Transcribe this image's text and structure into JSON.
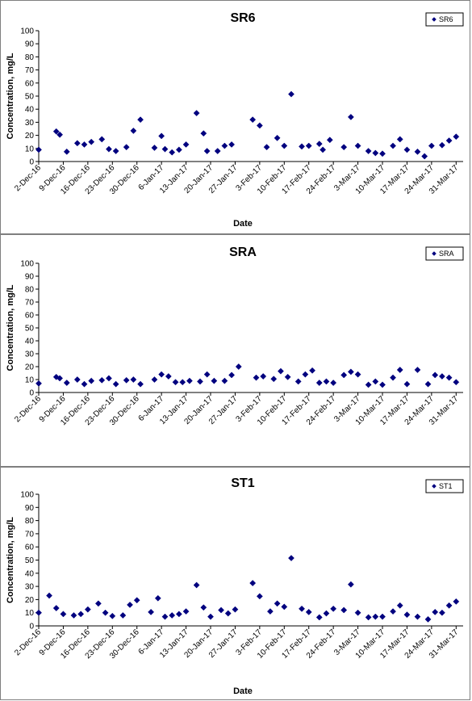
{
  "chart_data": [
    {
      "type": "scatter",
      "title": "SR6",
      "xlabel": "Date",
      "ylabel": "Concentration, mg/L",
      "ylim": [
        0,
        100
      ],
      "yticks": [
        0,
        10,
        20,
        30,
        40,
        50,
        60,
        70,
        80,
        90,
        100
      ],
      "xlim": [
        "2016-12-02",
        "2017-04-02"
      ],
      "xtick_dates": [
        "2016-12-02",
        "2016-12-09",
        "2016-12-16",
        "2016-12-23",
        "2016-12-30",
        "2017-01-06",
        "2017-01-13",
        "2017-01-20",
        "2017-01-27",
        "2017-02-03",
        "2017-02-10",
        "2017-02-17",
        "2017-02-24",
        "2017-03-03",
        "2017-03-10",
        "2017-03-17",
        "2017-03-24",
        "2017-03-31"
      ],
      "xtick_labels": [
        "2-Dec-16",
        "9-Dec-16",
        "16-Dec-16",
        "23-Dec-16",
        "30-Dec-16",
        "6-Jan-17",
        "13-Jan-17",
        "20-Jan-17",
        "27-Jan-17",
        "3-Feb-17",
        "10-Feb-17",
        "17-Feb-17",
        "24-Feb-17",
        "3-Mar-17",
        "10-Mar-17",
        "17-Mar-17",
        "24-Mar-17",
        "31-Mar-17"
      ],
      "legend": "top-right",
      "grid": false,
      "marker_color": "#00007f",
      "series": [
        {
          "name": "SR6",
          "points": [
            [
              "2016-12-02",
              9
            ],
            [
              "2016-12-07",
              23
            ],
            [
              "2016-12-08",
              20.5
            ],
            [
              "2016-12-10",
              7.5
            ],
            [
              "2016-12-13",
              14
            ],
            [
              "2016-12-15",
              13
            ],
            [
              "2016-12-17",
              15
            ],
            [
              "2016-12-20",
              17
            ],
            [
              "2016-12-22",
              9.5
            ],
            [
              "2016-12-24",
              8
            ],
            [
              "2016-12-27",
              11
            ],
            [
              "2016-12-29",
              23.5
            ],
            [
              "2016-12-31",
              32
            ],
            [
              "2017-01-04",
              10.5
            ],
            [
              "2017-01-06",
              19.5
            ],
            [
              "2017-01-07",
              9.5
            ],
            [
              "2017-01-09",
              7
            ],
            [
              "2017-01-11",
              9
            ],
            [
              "2017-01-13",
              13
            ],
            [
              "2017-01-16",
              37
            ],
            [
              "2017-01-18",
              21.5
            ],
            [
              "2017-01-19",
              8
            ],
            [
              "2017-01-22",
              8
            ],
            [
              "2017-01-24",
              12
            ],
            [
              "2017-01-26",
              13
            ],
            [
              "2017-02-01",
              32
            ],
            [
              "2017-02-03",
              27.5
            ],
            [
              "2017-02-05",
              11
            ],
            [
              "2017-02-08",
              18
            ],
            [
              "2017-02-10",
              12
            ],
            [
              "2017-02-12",
              51.5
            ],
            [
              "2017-02-15",
              11.5
            ],
            [
              "2017-02-17",
              12
            ],
            [
              "2017-02-20",
              13.5
            ],
            [
              "2017-02-21",
              9
            ],
            [
              "2017-02-23",
              16.5
            ],
            [
              "2017-02-27",
              11
            ],
            [
              "2017-03-01",
              34
            ],
            [
              "2017-03-03",
              12
            ],
            [
              "2017-03-06",
              8
            ],
            [
              "2017-03-08",
              6.5
            ],
            [
              "2017-03-10",
              6
            ],
            [
              "2017-03-13",
              12
            ],
            [
              "2017-03-15",
              17
            ],
            [
              "2017-03-17",
              9
            ],
            [
              "2017-03-20",
              7.5
            ],
            [
              "2017-03-22",
              4
            ],
            [
              "2017-03-24",
              12
            ],
            [
              "2017-03-27",
              12.5
            ],
            [
              "2017-03-29",
              16
            ],
            [
              "2017-03-31",
              19
            ]
          ]
        }
      ]
    },
    {
      "type": "scatter",
      "title": "SRA",
      "xlabel": "",
      "ylabel": "Concentration, mg/L",
      "ylim": [
        0,
        100
      ],
      "yticks": [
        0,
        10,
        20,
        30,
        40,
        50,
        60,
        70,
        80,
        90,
        100
      ],
      "xlim": [
        "2016-12-02",
        "2017-04-02"
      ],
      "xtick_dates": [
        "2016-12-02",
        "2016-12-09",
        "2016-12-16",
        "2016-12-23",
        "2016-12-30",
        "2017-01-06",
        "2017-01-13",
        "2017-01-20",
        "2017-01-27",
        "2017-02-03",
        "2017-02-10",
        "2017-02-17",
        "2017-02-24",
        "2017-03-03",
        "2017-03-10",
        "2017-03-17",
        "2017-03-24",
        "2017-03-31"
      ],
      "xtick_labels": [
        "2-Dec-16",
        "9-Dec-16",
        "16-Dec-16",
        "23-Dec-16",
        "30-Dec-16",
        "6-Jan-17",
        "13-Jan-17",
        "20-Jan-17",
        "27-Jan-17",
        "3-Feb-17",
        "10-Feb-17",
        "17-Feb-17",
        "24-Feb-17",
        "3-Mar-17",
        "10-Mar-17",
        "17-Mar-17",
        "24-Mar-17",
        "31-Mar-17"
      ],
      "legend": "top-right",
      "grid": false,
      "marker_color": "#00007f",
      "series": [
        {
          "name": "SRA",
          "points": [
            [
              "2016-12-02",
              7
            ],
            [
              "2016-12-07",
              12
            ],
            [
              "2016-12-08",
              11
            ],
            [
              "2016-12-10",
              7.5
            ],
            [
              "2016-12-13",
              10
            ],
            [
              "2016-12-15",
              6.5
            ],
            [
              "2016-12-17",
              9
            ],
            [
              "2016-12-20",
              9.5
            ],
            [
              "2016-12-22",
              11
            ],
            [
              "2016-12-24",
              6.5
            ],
            [
              "2016-12-27",
              9.5
            ],
            [
              "2016-12-29",
              10
            ],
            [
              "2016-12-31",
              6.5
            ],
            [
              "2017-01-04",
              10
            ],
            [
              "2017-01-06",
              14
            ],
            [
              "2017-01-08",
              12.5
            ],
            [
              "2017-01-10",
              8
            ],
            [
              "2017-01-12",
              8
            ],
            [
              "2017-01-14",
              9
            ],
            [
              "2017-01-17",
              8.5
            ],
            [
              "2017-01-19",
              14
            ],
            [
              "2017-01-21",
              9
            ],
            [
              "2017-01-24",
              9
            ],
            [
              "2017-01-26",
              13.5
            ],
            [
              "2017-01-28",
              20
            ],
            [
              "2017-02-02",
              11.5
            ],
            [
              "2017-02-04",
              12.5
            ],
            [
              "2017-02-07",
              10.5
            ],
            [
              "2017-02-09",
              16.5
            ],
            [
              "2017-02-11",
              12
            ],
            [
              "2017-02-14",
              8.5
            ],
            [
              "2017-02-16",
              14
            ],
            [
              "2017-02-18",
              17
            ],
            [
              "2017-02-20",
              7.5
            ],
            [
              "2017-02-22",
              8.5
            ],
            [
              "2017-02-24",
              7.5
            ],
            [
              "2017-02-27",
              13.5
            ],
            [
              "2017-03-01",
              16
            ],
            [
              "2017-03-03",
              14
            ],
            [
              "2017-03-06",
              6
            ],
            [
              "2017-03-08",
              8.5
            ],
            [
              "2017-03-10",
              6
            ],
            [
              "2017-03-13",
              11.5
            ],
            [
              "2017-03-15",
              17.5
            ],
            [
              "2017-03-17",
              6.5
            ],
            [
              "2017-03-20",
              17.5
            ],
            [
              "2017-03-23",
              6.5
            ],
            [
              "2017-03-25",
              13.5
            ],
            [
              "2017-03-27",
              12.5
            ],
            [
              "2017-03-29",
              11.5
            ],
            [
              "2017-03-31",
              8
            ]
          ]
        }
      ]
    },
    {
      "type": "scatter",
      "title": "ST1",
      "xlabel": "Date",
      "ylabel": "Concentration, mg/L",
      "ylim": [
        0,
        100
      ],
      "yticks": [
        0,
        10,
        20,
        30,
        40,
        50,
        60,
        70,
        80,
        90,
        100
      ],
      "xlim": [
        "2016-12-02",
        "2017-04-02"
      ],
      "xtick_dates": [
        "2016-12-02",
        "2016-12-09",
        "2016-12-16",
        "2016-12-23",
        "2016-12-30",
        "2017-01-06",
        "2017-01-13",
        "2017-01-20",
        "2017-01-27",
        "2017-02-03",
        "2017-02-10",
        "2017-02-17",
        "2017-02-24",
        "2017-03-03",
        "2017-03-10",
        "2017-03-17",
        "2017-03-24",
        "2017-03-31"
      ],
      "xtick_labels": [
        "2-Dec-16",
        "9-Dec-16",
        "16-Dec-16",
        "23-Dec-16",
        "30-Dec-16",
        "6-Jan-17",
        "13-Jan-17",
        "20-Jan-17",
        "27-Jan-17",
        "3-Feb-17",
        "10-Feb-17",
        "17-Feb-17",
        "24-Feb-17",
        "3-Mar-17",
        "10-Mar-17",
        "17-Mar-17",
        "24-Mar-17",
        "31-Mar-17"
      ],
      "legend": "top-right",
      "grid": false,
      "marker_color": "#00007f",
      "series": [
        {
          "name": "ST1",
          "points": [
            [
              "2016-12-02",
              10
            ],
            [
              "2016-12-05",
              23
            ],
            [
              "2016-12-07",
              13.5
            ],
            [
              "2016-12-09",
              9
            ],
            [
              "2016-12-12",
              8
            ],
            [
              "2016-12-14",
              9
            ],
            [
              "2016-12-16",
              12.5
            ],
            [
              "2016-12-19",
              17
            ],
            [
              "2016-12-21",
              10
            ],
            [
              "2016-12-23",
              7.5
            ],
            [
              "2016-12-26",
              8
            ],
            [
              "2016-12-28",
              16
            ],
            [
              "2016-12-30",
              19.5
            ],
            [
              "2017-01-03",
              10.5
            ],
            [
              "2017-01-05",
              21
            ],
            [
              "2017-01-07",
              7
            ],
            [
              "2017-01-09",
              8
            ],
            [
              "2017-01-11",
              9
            ],
            [
              "2017-01-13",
              11
            ],
            [
              "2017-01-16",
              31
            ],
            [
              "2017-01-18",
              14
            ],
            [
              "2017-01-20",
              7
            ],
            [
              "2017-01-23",
              12
            ],
            [
              "2017-01-25",
              9.5
            ],
            [
              "2017-01-27",
              12.5
            ],
            [
              "2017-02-01",
              32.5
            ],
            [
              "2017-02-03",
              22.5
            ],
            [
              "2017-02-06",
              11
            ],
            [
              "2017-02-08",
              17
            ],
            [
              "2017-02-10",
              14.5
            ],
            [
              "2017-02-12",
              51.5
            ],
            [
              "2017-02-15",
              13
            ],
            [
              "2017-02-17",
              10.5
            ],
            [
              "2017-02-20",
              6.5
            ],
            [
              "2017-02-22",
              9.5
            ],
            [
              "2017-02-24",
              13
            ],
            [
              "2017-02-27",
              12
            ],
            [
              "2017-03-01",
              31.5
            ],
            [
              "2017-03-03",
              10
            ],
            [
              "2017-03-06",
              6.5
            ],
            [
              "2017-03-08",
              7
            ],
            [
              "2017-03-10",
              7
            ],
            [
              "2017-03-13",
              11
            ],
            [
              "2017-03-15",
              15.5
            ],
            [
              "2017-03-17",
              8.5
            ],
            [
              "2017-03-20",
              7
            ],
            [
              "2017-03-23",
              5
            ],
            [
              "2017-03-25",
              10.5
            ],
            [
              "2017-03-27",
              10
            ],
            [
              "2017-03-29",
              15.5
            ],
            [
              "2017-03-31",
              18.5
            ]
          ]
        }
      ]
    }
  ]
}
